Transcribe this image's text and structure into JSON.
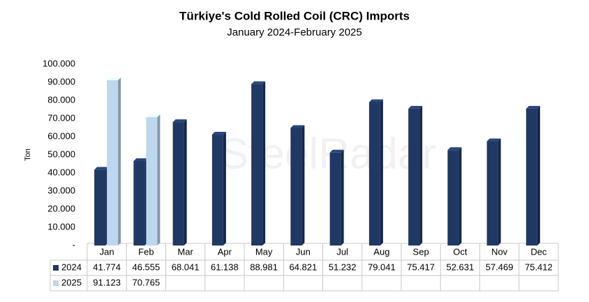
{
  "chart_data": {
    "type": "bar",
    "title": "Türkiye's Cold Rolled Coil (CRC) Imports",
    "subtitle": "January 2024-February 2025",
    "y_label": "Ton",
    "watermark": "SteelRadar",
    "categories": [
      "Jan",
      "Feb",
      "Mar",
      "Apr",
      "May",
      "Jun",
      "Jul",
      "Aug",
      "Sep",
      "Oct",
      "Nov",
      "Dec"
    ],
    "series": [
      {
        "name": "2024",
        "color": "#203864",
        "values": [
          41774,
          46555,
          68041,
          61138,
          88981,
          64821,
          51232,
          79041,
          75417,
          52631,
          57469,
          75412
        ],
        "value_labels": [
          "41.774",
          "46.555",
          "68.041",
          "61.138",
          "88.981",
          "64.821",
          "51.232",
          "79.041",
          "75.417",
          "52.631",
          "57.469",
          "75.412"
        ]
      },
      {
        "name": "2025",
        "color": "#bdd7ee",
        "values": [
          91123,
          70765,
          null,
          null,
          null,
          null,
          null,
          null,
          null,
          null,
          null,
          null
        ],
        "value_labels": [
          "91.123",
          "70.765",
          null,
          null,
          null,
          null,
          null,
          null,
          null,
          null,
          null,
          null
        ]
      }
    ],
    "ylim": [
      0,
      100000
    ],
    "yticks": [
      {
        "value": 0,
        "label": "-"
      },
      {
        "value": 10000,
        "label": "10.000"
      },
      {
        "value": 20000,
        "label": "20.000"
      },
      {
        "value": 30000,
        "label": "30.000"
      },
      {
        "value": 40000,
        "label": "40.000"
      },
      {
        "value": 50000,
        "label": "50.000"
      },
      {
        "value": 60000,
        "label": "60.000"
      },
      {
        "value": 70000,
        "label": "70.000"
      },
      {
        "value": 80000,
        "label": "80.000"
      },
      {
        "value": 90000,
        "label": "90.000"
      },
      {
        "value": 100000,
        "label": "100.000"
      }
    ],
    "grid": false,
    "legend": "table"
  }
}
